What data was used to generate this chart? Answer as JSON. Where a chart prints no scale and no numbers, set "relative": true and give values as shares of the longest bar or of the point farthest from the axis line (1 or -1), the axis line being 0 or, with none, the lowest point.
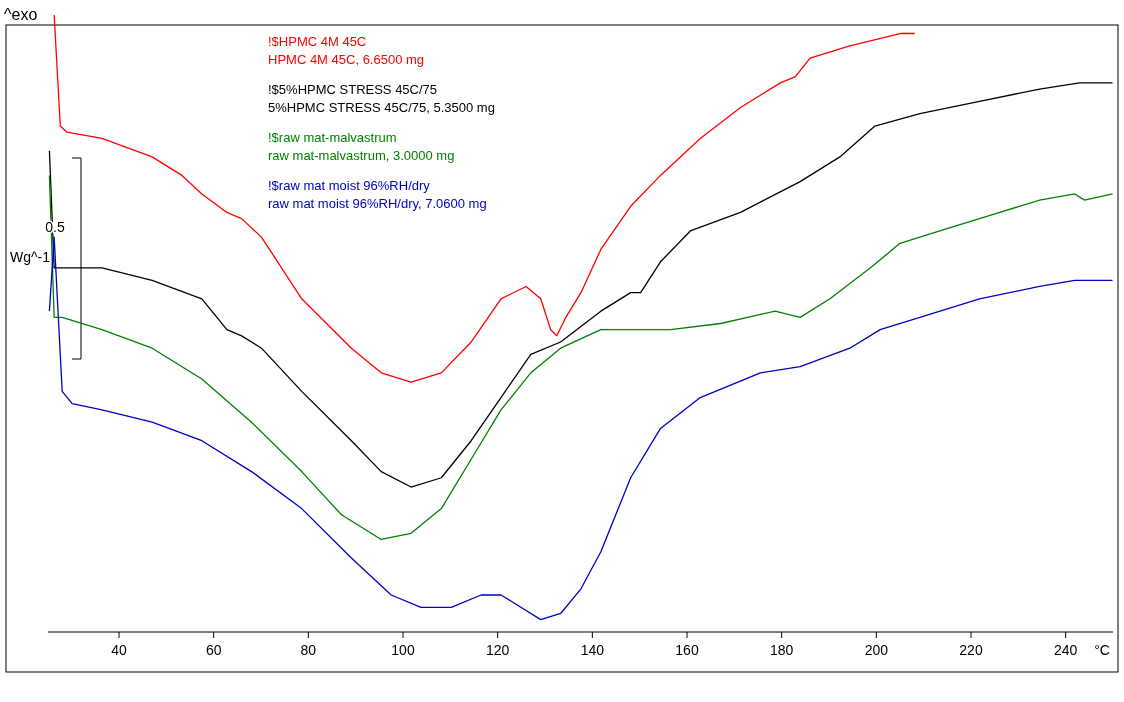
{
  "chart_data": {
    "type": "line",
    "relative": true,
    "xlabel": "°C",
    "xlim": [
      25,
      250
    ],
    "xticks": [
      40,
      60,
      80,
      100,
      120,
      140,
      160,
      180,
      200,
      220,
      240
    ],
    "grid": false,
    "legend": "top left",
    "marker": "none",
    "line_style": "solid",
    "annotations": [
      "^exo",
      "0.5",
      "Wg^-1",
      "!$HPMC 4M 45C",
      "!$5%HPMC STRESS 45C/75",
      "!$raw mat-malvastrum",
      "!$raw mat moist 96%RH/dry"
    ],
    "series": [
      {
        "name": "HPMC 4M 45C, 6.6500 mg",
        "color": "#ff0000",
        "x": [
          26.3,
          27.6,
          29.0,
          36.4,
          47.0,
          53.3,
          57.5,
          62.8,
          65.9,
          70.1,
          78.6,
          89.1,
          95.4,
          101.7,
          108.1,
          114.4,
          120.7,
          126.0,
          129.1,
          131.2,
          132.5,
          134.4,
          137.6,
          141.8,
          148.1,
          154.4,
          162.8,
          171.3,
          179.7,
          182.9,
          186.0,
          194.4,
          205.0,
          208.1
        ],
        "values": [
          1,
          0.82,
          0.81,
          0.8,
          0.77,
          0.74,
          0.71,
          0.68,
          0.67,
          0.64,
          0.54,
          0.46,
          0.42,
          0.405,
          0.42,
          0.47,
          0.54,
          0.56,
          0.54,
          0.49,
          0.48,
          0.51,
          0.55,
          0.62,
          0.69,
          0.74,
          0.8,
          0.85,
          0.89,
          0.9,
          0.93,
          0.95,
          0.97,
          0.97
        ]
      },
      {
        "name": "5%HPMC STRESS 45C/75, 5.3500 mg",
        "color": "#000000",
        "x": [
          25.3,
          26.3,
          28.0,
          36.4,
          47.0,
          57.5,
          62.8,
          65.9,
          70.1,
          78.6,
          89.1,
          95.4,
          101.7,
          108.1,
          114.4,
          120.7,
          127.0,
          133.3,
          141.8,
          148.1,
          150.2,
          154.4,
          160.7,
          171.3,
          183.9,
          192.3,
          199.7,
          209.2,
          221.8,
          234.5,
          242.9,
          249.9
        ],
        "values": [
          0.78,
          0.59,
          0.59,
          0.59,
          0.57,
          0.54,
          0.49,
          0.48,
          0.46,
          0.39,
          0.31,
          0.26,
          0.235,
          0.25,
          0.31,
          0.38,
          0.45,
          0.47,
          0.52,
          0.55,
          0.55,
          0.6,
          0.65,
          0.68,
          0.73,
          0.77,
          0.82,
          0.84,
          0.86,
          0.88,
          0.89,
          0.89
        ]
      },
      {
        "name": "raw mat-malvastrum, 3.0000 mg",
        "color": "#008000",
        "x": [
          25.3,
          26.3,
          28.0,
          36.4,
          47.0,
          57.5,
          68.0,
          78.6,
          87.0,
          95.4,
          101.7,
          108.1,
          114.4,
          120.7,
          127.0,
          133.3,
          141.8,
          156.5,
          167.1,
          178.6,
          183.9,
          190.2,
          198.7,
          205.0,
          213.4,
          221.8,
          234.5,
          241.9,
          244.0,
          249.9
        ],
        "values": [
          0.74,
          0.51,
          0.51,
          0.49,
          0.46,
          0.41,
          0.34,
          0.26,
          0.19,
          0.15,
          0.16,
          0.2,
          0.28,
          0.36,
          0.42,
          0.46,
          0.49,
          0.49,
          0.5,
          0.52,
          0.51,
          0.54,
          0.59,
          0.63,
          0.65,
          0.67,
          0.7,
          0.71,
          0.7,
          0.71
        ]
      },
      {
        "name": "raw mat moist 96%RH/dry, 7.0600 mg",
        "color": "#0000c0",
        "x": [
          25.3,
          26.3,
          28.0,
          30.1,
          36.4,
          47.0,
          57.5,
          68.0,
          78.6,
          89.1,
          97.5,
          103.8,
          110.2,
          116.5,
          120.7,
          124.9,
          129.1,
          133.3,
          137.6,
          141.8,
          148.1,
          154.4,
          162.8,
          175.5,
          183.9,
          194.4,
          200.8,
          209.2,
          221.8,
          234.5,
          241.9,
          249.9
        ],
        "values": [
          0.52,
          0.64,
          0.39,
          0.37,
          0.36,
          0.34,
          0.31,
          0.26,
          0.2,
          0.12,
          0.06,
          0.04,
          0.04,
          0.06,
          0.06,
          0.04,
          0.02,
          0.03,
          0.07,
          0.13,
          0.25,
          0.33,
          0.38,
          0.42,
          0.43,
          0.46,
          0.49,
          0.51,
          0.54,
          0.56,
          0.57,
          0.57
        ]
      }
    ]
  }
}
